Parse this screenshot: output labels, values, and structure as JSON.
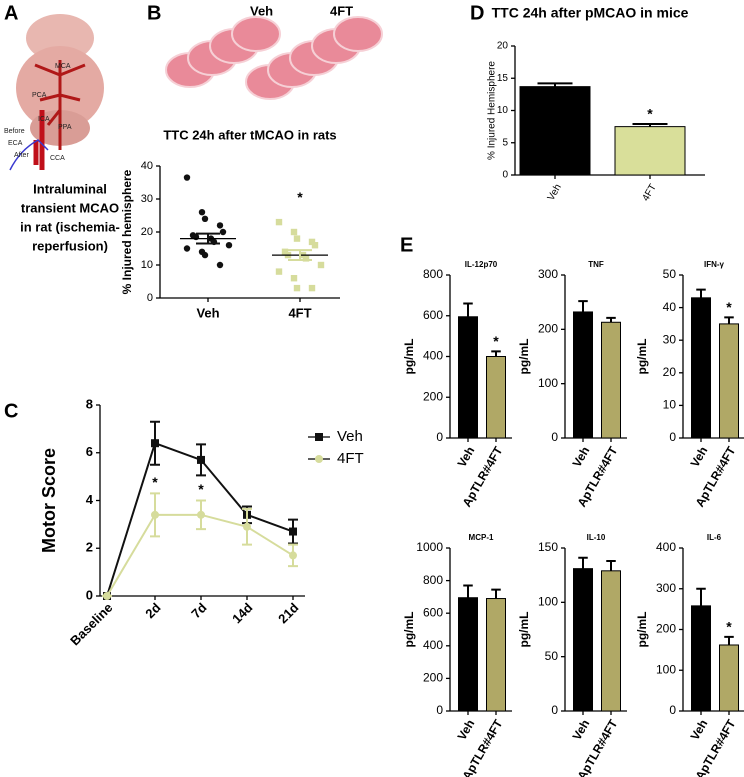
{
  "panels": [
    "A",
    "B",
    "C",
    "D",
    "E"
  ],
  "illustration": {
    "labels": [
      "MCA",
      "PCA",
      "ICA",
      "PPA",
      "Before",
      "ECA",
      "After",
      "CCA"
    ],
    "caption": [
      "Intraluminal",
      "transient MCAO",
      "in rat (ischemia-",
      "reperfusion)"
    ]
  },
  "slice_labels": [
    "Veh",
    "4FT"
  ],
  "chart_data": [
    {
      "type": "strip",
      "title": "TTC 24h after tMCAO in rats",
      "y_label": "% Injured hemisphere",
      "categories": [
        "Veh",
        "4FT"
      ],
      "colors": [
        "#111111",
        "#d6dc9c"
      ],
      "markers": [
        "circle",
        "square"
      ],
      "points": [
        [
          36.5,
          26,
          24,
          22,
          20,
          19,
          18.5,
          18,
          17,
          16,
          15,
          14,
          13,
          10
        ],
        [
          23,
          20,
          18,
          17,
          16,
          14,
          13,
          13,
          12,
          10,
          8,
          6,
          3,
          3
        ]
      ],
      "means": [
        18,
        13
      ],
      "errors": [
        1.5,
        1.5
      ],
      "annotations": [
        null,
        "*"
      ],
      "ylim": [
        0,
        40
      ],
      "yticks": [
        0,
        10,
        20,
        30,
        40
      ]
    },
    {
      "type": "line",
      "y_label": "Motor Score",
      "categories": [
        "Baseline",
        "2d",
        "7d",
        "14d",
        "21d"
      ],
      "series": [
        {
          "name": "Veh",
          "color": "#111111",
          "marker": "square",
          "values": [
            0,
            6.4,
            5.7,
            3.4,
            2.7
          ],
          "errors": [
            0,
            0.9,
            0.65,
            0.35,
            0.5
          ]
        },
        {
          "name": "4FT",
          "color": "#d6dc9c",
          "marker": "circle",
          "values": [
            0,
            3.4,
            3.4,
            2.9,
            1.7
          ],
          "errors": [
            0,
            0.9,
            0.6,
            0.75,
            0.45
          ]
        }
      ],
      "annotations": [
        null,
        "*",
        "*",
        null,
        null
      ],
      "legend": "right",
      "ylim": [
        0,
        8
      ],
      "yticks": [
        0,
        2,
        4,
        6,
        8
      ]
    },
    {
      "type": "bar",
      "title": "TTC 24h after pMCAO in mice",
      "y_label": "% Injured Hemisphere",
      "categories": [
        "Veh",
        "4FT"
      ],
      "values": [
        13.7,
        7.5
      ],
      "errors": [
        0.5,
        0.4
      ],
      "colors": [
        "#000000",
        "#d9df9a"
      ],
      "annotations": [
        null,
        "*"
      ],
      "ylim": [
        0,
        20
      ],
      "yticks": [
        0,
        5,
        10,
        15,
        20
      ]
    },
    {
      "type": "bar",
      "title": "IL-12p70",
      "y_label": "pg/mL",
      "categories": [
        "Veh",
        "ApTLR#4FT"
      ],
      "values": [
        595,
        400
      ],
      "errors": [
        65,
        25
      ],
      "colors": [
        "#000000",
        "#b0a866"
      ],
      "annotations": [
        null,
        "*"
      ],
      "ylim": [
        0,
        800
      ],
      "yticks": [
        0,
        200,
        400,
        600,
        800
      ]
    },
    {
      "type": "bar",
      "title": "TNF",
      "y_label": "pg/mL",
      "categories": [
        "Veh",
        "ApTLR#4FT"
      ],
      "values": [
        232,
        213
      ],
      "errors": [
        20,
        8
      ],
      "colors": [
        "#000000",
        "#b0a866"
      ],
      "annotations": [
        null,
        null
      ],
      "ylim": [
        0,
        300
      ],
      "yticks": [
        0,
        100,
        200,
        300
      ]
    },
    {
      "type": "bar",
      "title": "IFN-γ",
      "y_label": "pg/mL",
      "categories": [
        "Veh",
        "ApTLR#4FT"
      ],
      "values": [
        43,
        35
      ],
      "errors": [
        2.5,
        2
      ],
      "colors": [
        "#000000",
        "#b0a866"
      ],
      "annotations": [
        null,
        "*"
      ],
      "ylim": [
        0,
        50
      ],
      "yticks": [
        0,
        10,
        20,
        30,
        40,
        50
      ]
    },
    {
      "type": "bar",
      "title": "MCP-1",
      "y_label": "pg/mL",
      "categories": [
        "Veh",
        "ApTLR#4FT"
      ],
      "values": [
        695,
        690
      ],
      "errors": [
        75,
        55
      ],
      "colors": [
        "#000000",
        "#b0a866"
      ],
      "annotations": [
        null,
        null
      ],
      "ylim": [
        0,
        1000
      ],
      "yticks": [
        0,
        200,
        400,
        600,
        800,
        1000
      ]
    },
    {
      "type": "bar",
      "title": "IL-10",
      "y_label": "pg/mL",
      "categories": [
        "Veh",
        "ApTLR#4FT"
      ],
      "values": [
        131,
        129
      ],
      "errors": [
        10,
        9
      ],
      "colors": [
        "#000000",
        "#b0a866"
      ],
      "annotations": [
        null,
        null
      ],
      "ylim": [
        0,
        150
      ],
      "yticks": [
        0,
        50,
        100,
        150
      ]
    },
    {
      "type": "bar",
      "title": "IL-6",
      "y_label": "pg/mL",
      "categories": [
        "Veh",
        "ApTLR#4FT"
      ],
      "values": [
        258,
        162
      ],
      "errors": [
        42,
        20
      ],
      "colors": [
        "#000000",
        "#b0a866"
      ],
      "annotations": [
        null,
        "*"
      ],
      "ylim": [
        0,
        400
      ],
      "yticks": [
        0,
        100,
        200,
        300,
        400
      ]
    }
  ]
}
